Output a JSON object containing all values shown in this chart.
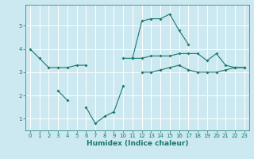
{
  "title": "",
  "xlabel": "Humidex (Indice chaleur)",
  "ylabel": "",
  "bg_color": "#cce8f0",
  "line_color": "#1a7a6e",
  "grid_color": "#ffffff",
  "xlim": [
    -0.5,
    23.5
  ],
  "ylim": [
    0.5,
    5.9
  ],
  "xticks": [
    0,
    1,
    2,
    3,
    4,
    5,
    6,
    7,
    8,
    9,
    10,
    11,
    12,
    13,
    14,
    15,
    16,
    17,
    18,
    19,
    20,
    21,
    22,
    23
  ],
  "yticks": [
    1,
    2,
    3,
    4,
    5
  ],
  "series": [
    [
      4.0,
      3.6,
      3.2,
      3.2,
      3.2,
      3.3,
      3.3,
      null,
      null,
      null,
      3.6,
      3.6,
      3.6,
      3.7,
      3.7,
      3.7,
      3.8,
      3.8,
      3.8,
      3.5,
      3.8,
      3.3,
      3.2,
      3.2
    ],
    [
      null,
      null,
      null,
      2.2,
      1.8,
      null,
      1.5,
      0.8,
      1.1,
      1.3,
      2.4,
      null,
      null,
      null,
      null,
      null,
      null,
      null,
      null,
      null,
      null,
      null,
      null,
      null
    ],
    [
      null,
      null,
      null,
      null,
      null,
      null,
      null,
      null,
      null,
      null,
      null,
      null,
      3.0,
      3.0,
      3.1,
      3.2,
      3.3,
      3.1,
      3.0,
      3.0,
      3.0,
      3.1,
      3.2,
      3.2
    ],
    [
      null,
      null,
      null,
      null,
      null,
      null,
      null,
      null,
      null,
      null,
      null,
      3.6,
      5.2,
      5.3,
      5.3,
      5.5,
      4.8,
      4.2,
      null,
      null,
      null,
      null,
      null,
      null
    ]
  ]
}
